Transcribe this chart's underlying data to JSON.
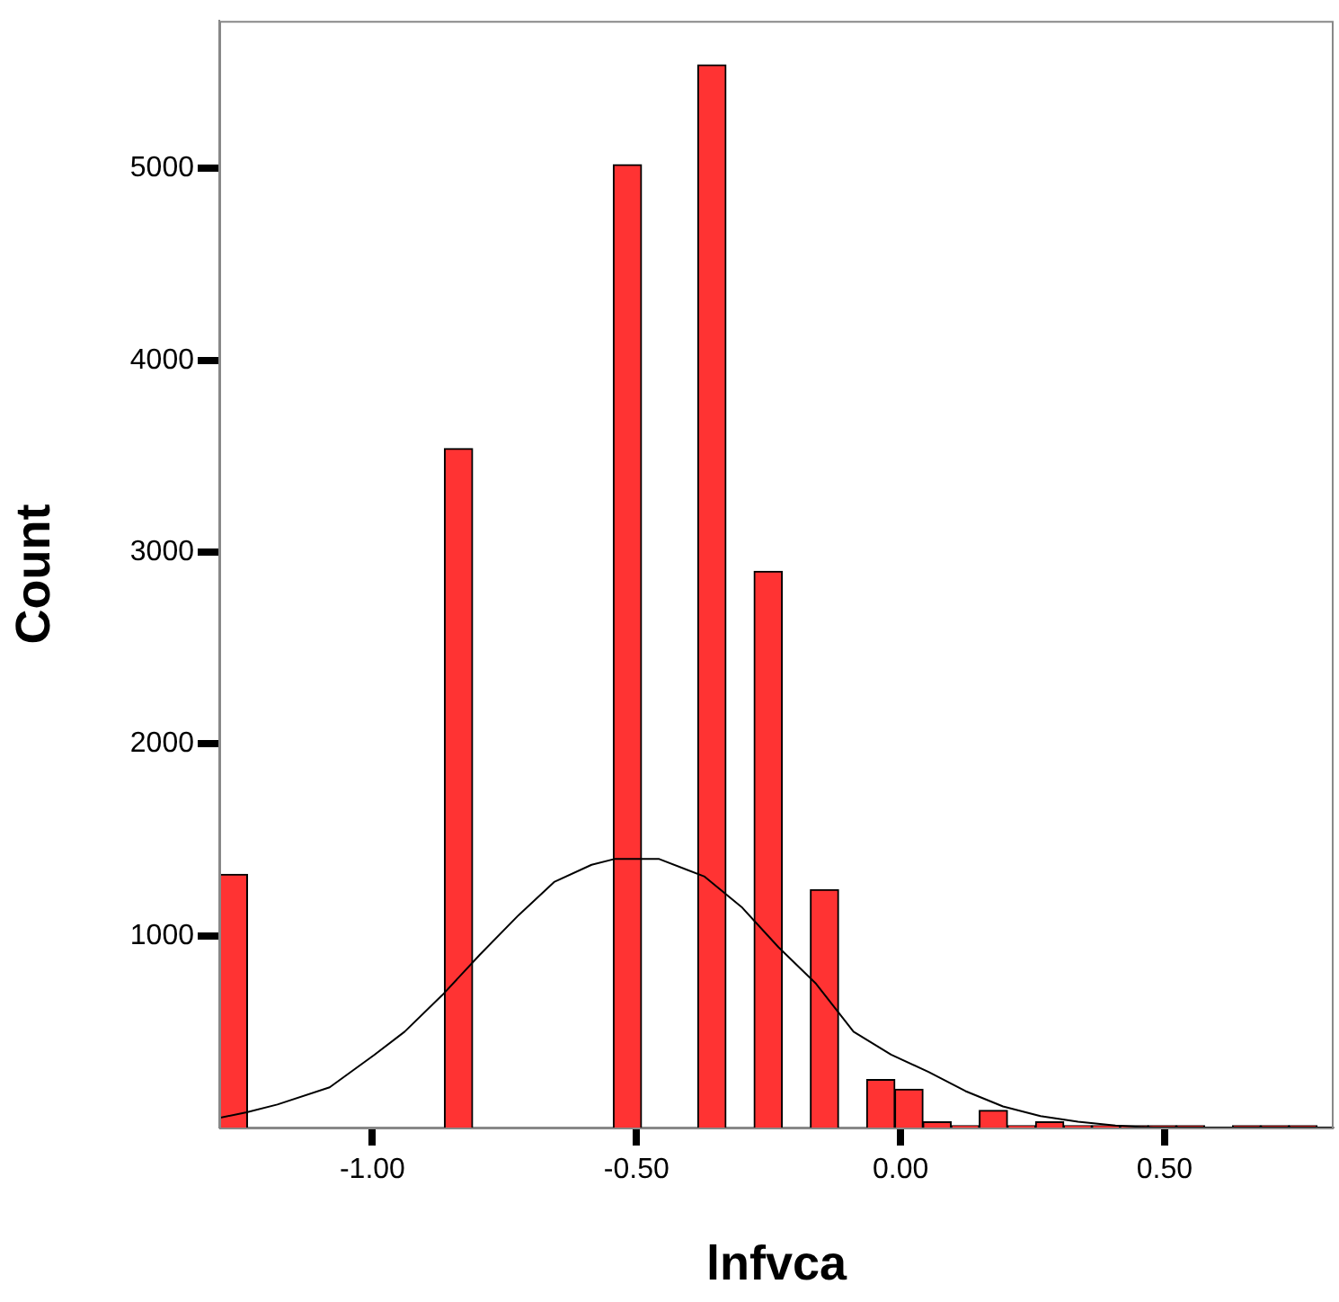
{
  "chart_data": {
    "type": "histogram",
    "xlabel": "lnfvca",
    "ylabel": "Count",
    "xlim": [
      -1.29,
      0.82
    ],
    "xticks": [
      {
        "value": -1,
        "label": "-1.00"
      },
      {
        "value": -0.5,
        "label": "-0.50"
      },
      {
        "value": 0,
        "label": "0.00"
      },
      {
        "value": 0.5,
        "label": "0.50"
      }
    ],
    "ylim": [
      0,
      5770
    ],
    "yticks": [
      1000,
      2000,
      3000,
      4000,
      5000
    ],
    "grid": false,
    "legend": false,
    "series": [
      {
        "color": "#ff3333",
        "bins": [
          -1.29,
          -1.2367,
          -1.1834,
          -1.1301,
          -1.0768,
          -1.0235,
          -0.9702,
          -0.9169,
          -0.8636,
          -0.8103,
          -0.757,
          -0.7037,
          -0.6504,
          -0.5971,
          -0.5438,
          -0.4905,
          -0.4372,
          -0.3839,
          -0.3306,
          -0.2773,
          -0.224,
          -0.1707,
          -0.1174,
          -0.0641,
          -0.0108,
          0.0425,
          0.0958,
          0.1491,
          0.2024,
          0.2557,
          0.309,
          0.3623,
          0.4156,
          0.4689,
          0.5222,
          0.5755,
          0.6288,
          0.6821,
          0.7354,
          0.7887
        ],
        "values": [
          1320,
          0,
          0,
          0,
          0,
          0,
          0,
          0,
          3540,
          0,
          0,
          0,
          0,
          0,
          5020,
          0,
          0,
          5540,
          0,
          2900,
          0,
          1240,
          0,
          250,
          200,
          30,
          10,
          90,
          10,
          30,
          10,
          10,
          10,
          10,
          10,
          0,
          10,
          10,
          10
        ]
      },
      {
        "type": "line",
        "color": "#000000",
        "x": [
          -1.29,
          -1.238,
          -1.18,
          -1.081,
          -0.996,
          -0.939,
          -0.868,
          -0.797,
          -0.726,
          -0.656,
          -0.585,
          -0.542,
          -0.457,
          -0.372,
          -0.301,
          -0.231,
          -0.16,
          -0.089,
          -0.018,
          0.053,
          0.123,
          0.194,
          0.265,
          0.336,
          0.407,
          0.478,
          0.82
        ],
        "values": [
          50,
          80,
          120,
          210,
          380,
          500,
          690,
          900,
          1100,
          1280,
          1370,
          1400,
          1400,
          1310,
          1150,
          940,
          750,
          500,
          380,
          290,
          190,
          110,
          60,
          30,
          10,
          0,
          0
        ]
      }
    ]
  }
}
